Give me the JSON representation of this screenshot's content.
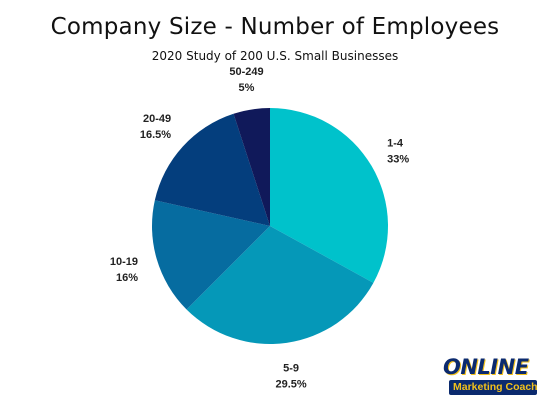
{
  "chart_data": {
    "type": "pie",
    "title": "Company Size - Number of Employees",
    "subtitle": "2020 Study of 200 U.S. Small Businesses",
    "slices": [
      {
        "label": "1-4",
        "value": 33,
        "value_label": "33%",
        "color": "#00C2CB"
      },
      {
        "label": "5-9",
        "value": 29.5,
        "value_label": "29.5%",
        "color": "#0598B8"
      },
      {
        "label": "10-19",
        "value": 16,
        "value_label": "16%",
        "color": "#066CA0"
      },
      {
        "label": "20-49",
        "value": 16.5,
        "value_label": "16.5%",
        "color": "#043E7D"
      },
      {
        "label": "50-249",
        "value": 5,
        "value_label": "5%",
        "color": "#10195A"
      }
    ],
    "start_angle_deg": 0,
    "direction": "clockwise",
    "legend": "none",
    "data_labels": "outside"
  },
  "logo": {
    "top_text": "ONLINE",
    "bottom_text": "Marketing Coach",
    "colors": {
      "navy": "#0b2a6e",
      "gold": "#f3c11b"
    }
  }
}
